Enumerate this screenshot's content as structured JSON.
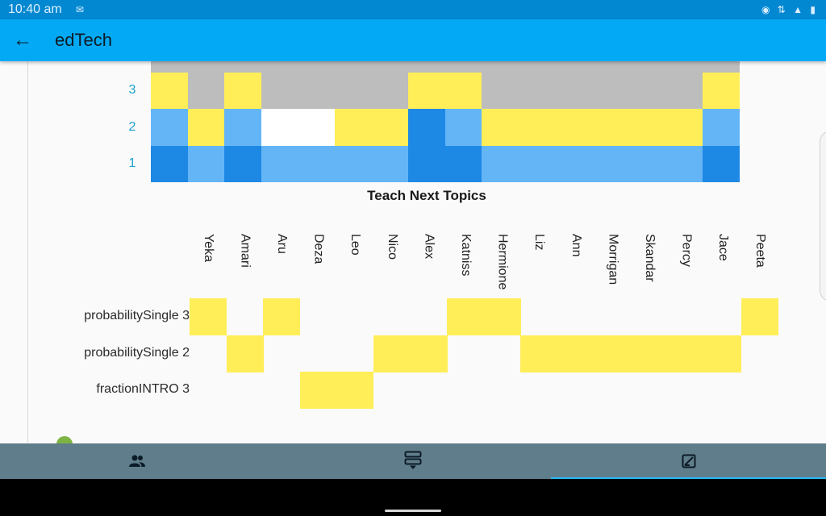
{
  "status_bar": {
    "time": "10:40 am",
    "mail_glyph": "✉",
    "right_icons": "◉ ⇅ ▲ ▮"
  },
  "app_bar": {
    "back_glyph": "←",
    "title": "edTech"
  },
  "top_chart": {
    "title": "Teach Next Topics",
    "levels": [
      "1",
      "2",
      "3"
    ],
    "colors": {
      "high": "#1e88e5",
      "mid": "#64b5f6",
      "yellow": "#ffee58",
      "grey": "#bdbdbd",
      "white": "#ffffff"
    },
    "rows": [
      [
        "high",
        "mid",
        "high",
        "mid",
        "mid",
        "mid",
        "mid",
        "high",
        "high",
        "mid",
        "mid",
        "mid",
        "mid",
        "mid",
        "mid",
        "high"
      ],
      [
        "mid",
        "yellow",
        "mid",
        "white",
        "white",
        "yellow",
        "yellow",
        "high",
        "mid",
        "yellow",
        "yellow",
        "yellow",
        "yellow",
        "yellow",
        "yellow",
        "mid"
      ],
      [
        "yellow",
        "grey",
        "yellow",
        "grey",
        "grey",
        "grey",
        "grey",
        "yellow",
        "yellow",
        "grey",
        "grey",
        "grey",
        "grey",
        "grey",
        "grey",
        "yellow"
      ],
      [
        "grey",
        "grey",
        "grey",
        "grey",
        "grey",
        "grey",
        "grey",
        "grey",
        "grey",
        "grey",
        "grey",
        "grey",
        "grey",
        "grey",
        "grey",
        "grey"
      ]
    ]
  },
  "students": [
    "Yeka",
    "Amari",
    "Aru",
    "Deza",
    "Leo",
    "Nico",
    "Alex",
    "Katniss",
    "Hermione",
    "Liz",
    "Ann",
    "Morrigan",
    "Skandar",
    "Percy",
    "Jace",
    "Peeta"
  ],
  "matrix": {
    "highlight_color": "#ffee58",
    "rows": [
      {
        "label": "probabilitySingle 3",
        "cells": [
          1,
          0,
          1,
          0,
          0,
          0,
          0,
          1,
          1,
          0,
          0,
          0,
          0,
          0,
          0,
          1
        ]
      },
      {
        "label": "probabilitySingle 2",
        "cells": [
          0,
          1,
          0,
          0,
          0,
          1,
          1,
          0,
          0,
          1,
          1,
          1,
          1,
          1,
          1,
          0
        ]
      },
      {
        "label": "fractionINTRO 3",
        "cells": [
          0,
          0,
          0,
          1,
          1,
          0,
          0,
          0,
          0,
          0,
          0,
          0,
          0,
          0,
          0,
          0
        ]
      }
    ]
  },
  "bottom_nav": [
    "people-icon",
    "split-list-icon",
    "chart-box-icon"
  ],
  "bottom_nav_active": 2
}
